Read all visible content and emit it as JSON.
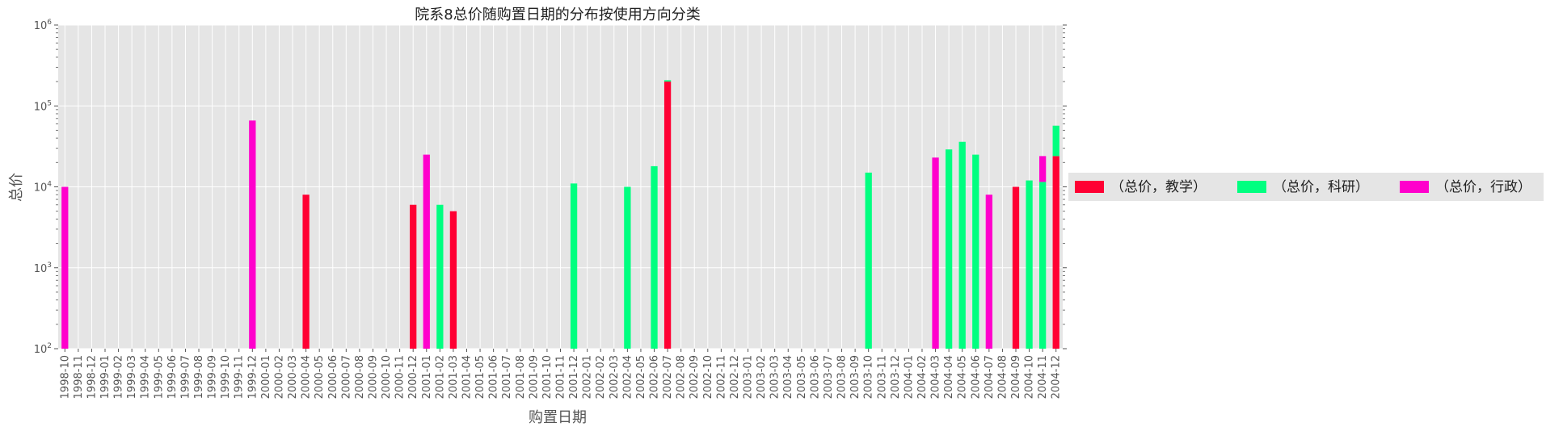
{
  "chart_data": {
    "type": "bar",
    "stacked": true,
    "title": "院系8总价随购置日期的分布按使用方向分类",
    "xlabel": "购置日期",
    "ylabel": "总价",
    "yscale": "log",
    "ylim": [
      100,
      1000000
    ],
    "ytick_values": [
      100,
      1000,
      10000,
      100000,
      1000000
    ],
    "ytick_labels": [
      {
        "base": "10",
        "exp": "2"
      },
      {
        "base": "10",
        "exp": "3"
      },
      {
        "base": "10",
        "exp": "4"
      },
      {
        "base": "10",
        "exp": "5"
      },
      {
        "base": "10",
        "exp": "6"
      }
    ],
    "grid": true,
    "legend_position": "right",
    "categories": [
      "1998-10",
      "1998-11",
      "1998-12",
      "1999-01",
      "1999-02",
      "1999-03",
      "1999-04",
      "1999-05",
      "1999-06",
      "1999-07",
      "1999-08",
      "1999-09",
      "1999-10",
      "1999-11",
      "1999-12",
      "2000-01",
      "2000-02",
      "2000-03",
      "2000-04",
      "2000-05",
      "2000-06",
      "2000-07",
      "2000-08",
      "2000-09",
      "2000-10",
      "2000-11",
      "2000-12",
      "2001-01",
      "2001-02",
      "2001-03",
      "2001-04",
      "2001-05",
      "2001-06",
      "2001-07",
      "2001-08",
      "2001-09",
      "2001-10",
      "2001-11",
      "2001-12",
      "2002-01",
      "2002-02",
      "2002-03",
      "2002-04",
      "2002-05",
      "2002-06",
      "2002-07",
      "2002-08",
      "2002-09",
      "2002-10",
      "2002-11",
      "2002-12",
      "2003-01",
      "2003-02",
      "2003-03",
      "2003-04",
      "2003-05",
      "2003-06",
      "2003-07",
      "2003-08",
      "2003-09",
      "2003-10",
      "2003-11",
      "2003-12",
      "2004-01",
      "2004-02",
      "2004-03",
      "2004-04",
      "2004-05",
      "2004-06",
      "2004-07",
      "2004-08",
      "2004-09",
      "2004-10",
      "2004-11",
      "2004-12"
    ],
    "series": [
      {
        "name": "（总价，教学）",
        "color": "#ff0033",
        "values": [
          0,
          0,
          0,
          0,
          0,
          0,
          0,
          0,
          0,
          0,
          0,
          0,
          0,
          0,
          0,
          0,
          0,
          0,
          8000,
          0,
          0,
          0,
          0,
          0,
          0,
          0,
          6000,
          0,
          0,
          5000,
          0,
          0,
          0,
          0,
          0,
          0,
          0,
          0,
          0,
          0,
          0,
          0,
          0,
          0,
          0,
          200000,
          0,
          0,
          0,
          0,
          0,
          0,
          0,
          0,
          0,
          0,
          0,
          0,
          0,
          0,
          0,
          0,
          0,
          0,
          0,
          0,
          0,
          0,
          0,
          0,
          0,
          10000,
          0,
          0,
          24000
        ]
      },
      {
        "name": "（总价，科研）",
        "color": "#00ff80",
        "values": [
          0,
          0,
          0,
          0,
          0,
          0,
          0,
          0,
          0,
          0,
          0,
          0,
          0,
          0,
          0,
          0,
          0,
          0,
          0,
          0,
          0,
          0,
          0,
          0,
          0,
          0,
          0,
          0,
          6000,
          0,
          0,
          0,
          0,
          0,
          0,
          0,
          0,
          0,
          11000,
          0,
          0,
          0,
          10000,
          0,
          18000,
          8000,
          0,
          0,
          0,
          0,
          0,
          0,
          0,
          0,
          0,
          0,
          0,
          0,
          0,
          0,
          15000,
          0,
          0,
          0,
          0,
          0,
          29000,
          36000,
          25000,
          0,
          0,
          0,
          12000,
          11500,
          33000
        ]
      },
      {
        "name": "（总价，行政）",
        "color": "#ff00cc",
        "values": [
          10000,
          0,
          0,
          0,
          0,
          0,
          0,
          0,
          0,
          0,
          0,
          0,
          0,
          0,
          66000,
          0,
          0,
          0,
          0,
          0,
          0,
          0,
          0,
          0,
          0,
          0,
          0,
          25000,
          0,
          0,
          0,
          0,
          0,
          0,
          0,
          0,
          0,
          0,
          0,
          0,
          0,
          0,
          0,
          0,
          0,
          0,
          0,
          0,
          0,
          0,
          0,
          0,
          0,
          0,
          0,
          0,
          0,
          0,
          0,
          0,
          0,
          0,
          0,
          0,
          0,
          23000,
          0,
          0,
          0,
          8000,
          0,
          0,
          0,
          12500,
          0
        ]
      }
    ]
  }
}
